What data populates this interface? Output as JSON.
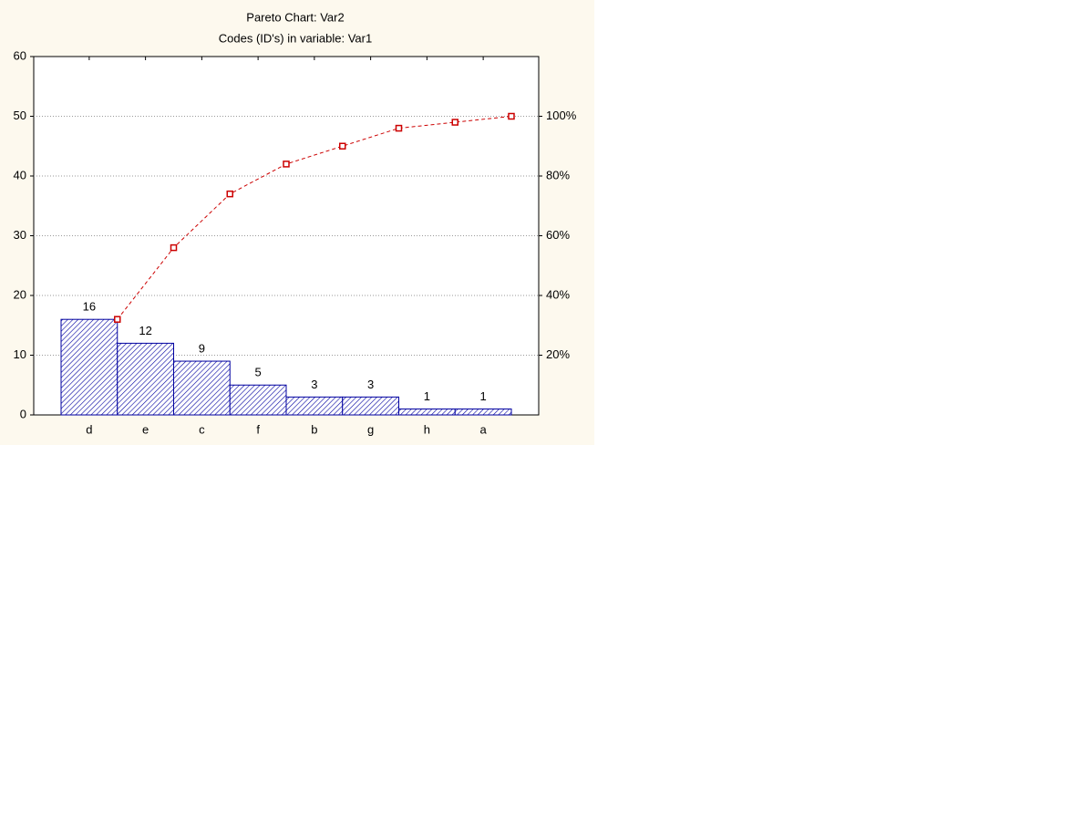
{
  "chart_data": {
    "type": "pareto",
    "title": "Pareto Chart: Var2",
    "subtitle": "Codes (ID's) in variable: Var1",
    "categories": [
      "d",
      "e",
      "c",
      "f",
      "b",
      "g",
      "h",
      "a"
    ],
    "series": [
      {
        "color": "#0000a0",
        "values": [
          16,
          12,
          9,
          5,
          3,
          3,
          1,
          1
        ]
      },
      {
        "color": "#cc0000",
        "axis": "y2",
        "values": [
          32,
          56,
          74,
          84,
          90,
          96,
          98,
          100
        ]
      }
    ],
    "ylim": [
      0,
      60
    ],
    "yticks": [
      0,
      10,
      20,
      30,
      40,
      50,
      60
    ],
    "y2lim": [
      0,
      120
    ],
    "y2ticks": [
      {
        "value": 20,
        "label": "20%"
      },
      {
        "value": 40,
        "label": "40%"
      },
      {
        "value": 60,
        "label": "60%"
      },
      {
        "value": 80,
        "label": "80%"
      },
      {
        "value": 100,
        "label": "100%"
      }
    ],
    "grid": true
  }
}
